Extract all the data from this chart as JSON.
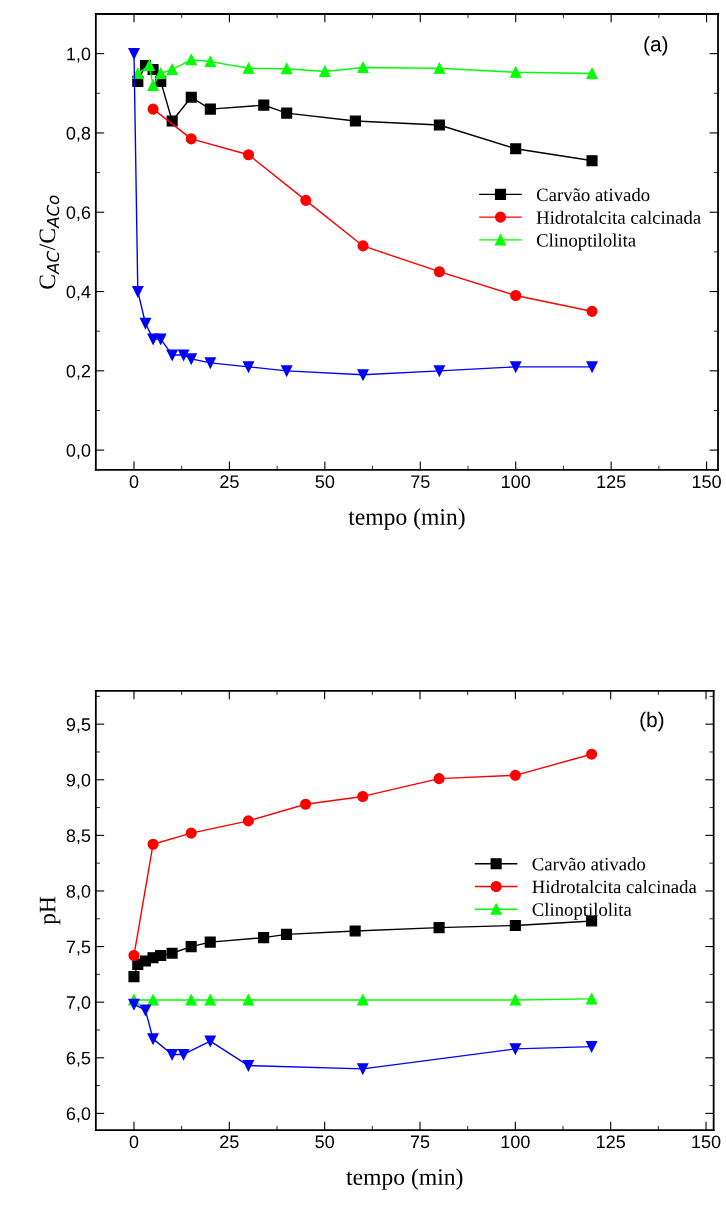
{
  "chart_data": [
    {
      "type": "line",
      "xlabel": "tempo (min)",
      "ylabel": "C$_{AC}$/C$_{ACo}$",
      "annotations": [
        "(a)"
      ],
      "xlim": [
        -10,
        153
      ],
      "xticks": [
        0,
        25,
        50,
        75,
        100,
        125,
        150
      ],
      "ylim": [
        -0.05,
        1.1
      ],
      "yticks": [
        {
          "value": 0.0,
          "label": "0,0"
        },
        {
          "value": 0.2,
          "label": "0,2"
        },
        {
          "value": 0.4,
          "label": "0,4"
        },
        {
          "value": 0.6,
          "label": "0,6"
        },
        {
          "value": 0.8,
          "label": "0,8"
        },
        {
          "value": 1.0,
          "label": "1,0"
        }
      ],
      "grid": false,
      "legend": "right",
      "line_style": "solid",
      "series": [
        {
          "name": "Carvão ativado",
          "color": "#000000",
          "marker": "square",
          "x": [
            1,
            3,
            5,
            7,
            10,
            15,
            20,
            34,
            40,
            58,
            80,
            100,
            120
          ],
          "values": [
            0.93,
            0.97,
            0.96,
            0.93,
            0.83,
            0.89,
            0.86,
            0.87,
            0.85,
            0.83,
            0.82,
            0.76,
            0.73
          ]
        },
        {
          "name": "Hidrotalcita calcinada",
          "color": "#ff0000",
          "marker": "circle",
          "x": [
            5,
            15,
            30,
            45,
            60,
            80,
            100,
            120
          ],
          "values": [
            0.86,
            0.785,
            0.745,
            0.63,
            0.515,
            0.45,
            0.39,
            0.35
          ]
        },
        {
          "name": "Clinoptilolita",
          "color": "#00ff00",
          "marker": "triangle",
          "x": [
            1,
            4,
            5,
            7,
            10,
            15,
            20,
            30,
            40,
            50,
            60,
            80,
            100,
            120
          ],
          "values": [
            0.95,
            0.97,
            0.92,
            0.95,
            0.96,
            0.985,
            0.98,
            0.963,
            0.962,
            0.955,
            0.965,
            0.963,
            0.953,
            0.95
          ]
        },
        {
          "color": "#0000ff",
          "marker": "triangle_down",
          "x": [
            0,
            1,
            3,
            5,
            7,
            10,
            13,
            15,
            20,
            30,
            40,
            60,
            80,
            100,
            120
          ],
          "values": [
            1.0,
            0.4,
            0.32,
            0.28,
            0.28,
            0.24,
            0.24,
            0.23,
            0.22,
            0.21,
            0.2,
            0.19,
            0.2,
            0.21,
            0.21
          ]
        }
      ]
    },
    {
      "type": "line",
      "xlabel": "tempo (min)",
      "ylabel": "pH",
      "annotations": [
        "(b)"
      ],
      "xlim": [
        -10,
        152
      ],
      "xticks": [
        0,
        25,
        50,
        75,
        100,
        125,
        150
      ],
      "ylim": [
        5.85,
        9.8
      ],
      "yticks": [
        {
          "value": 6.0,
          "label": "6,0"
        },
        {
          "value": 6.5,
          "label": "6,5"
        },
        {
          "value": 7.0,
          "label": "7,0"
        },
        {
          "value": 7.5,
          "label": "7,5"
        },
        {
          "value": 8.0,
          "label": "8,0"
        },
        {
          "value": 8.5,
          "label": "8,5"
        },
        {
          "value": 9.0,
          "label": "9,0"
        },
        {
          "value": 9.5,
          "label": "9,5"
        }
      ],
      "grid": false,
      "legend": "right",
      "line_style": "solid",
      "series": [
        {
          "name": "Carvão ativado",
          "color": "#000000",
          "marker": "square",
          "x": [
            0,
            1,
            3,
            5,
            7,
            10,
            15,
            20,
            34,
            40,
            58,
            80,
            100,
            120
          ],
          "values": [
            7.23,
            7.34,
            7.37,
            7.4,
            7.42,
            7.44,
            7.5,
            7.54,
            7.58,
            7.61,
            7.64,
            7.67,
            7.69,
            7.73
          ]
        },
        {
          "name": "Hidrotalcita calcinada",
          "color": "#ff0000",
          "marker": "circle",
          "x": [
            0,
            5,
            15,
            30,
            45,
            60,
            80,
            100,
            120
          ],
          "values": [
            7.42,
            8.42,
            8.52,
            8.63,
            8.78,
            8.85,
            9.01,
            9.04,
            9.23
          ]
        },
        {
          "name": "Clinoptilolita",
          "color": "#00ff00",
          "marker": "triangle",
          "x": [
            0,
            5,
            15,
            20,
            30,
            60,
            100,
            120
          ],
          "values": [
            7.02,
            7.02,
            7.02,
            7.02,
            7.02,
            7.02,
            7.02,
            7.03
          ]
        },
        {
          "color": "#0000ff",
          "marker": "triangle_down",
          "x": [
            0,
            3,
            5,
            10,
            13,
            20,
            30,
            60,
            100,
            120
          ],
          "values": [
            6.98,
            6.93,
            6.67,
            6.53,
            6.53,
            6.65,
            6.43,
            6.4,
            6.58,
            6.6
          ]
        }
      ]
    }
  ]
}
